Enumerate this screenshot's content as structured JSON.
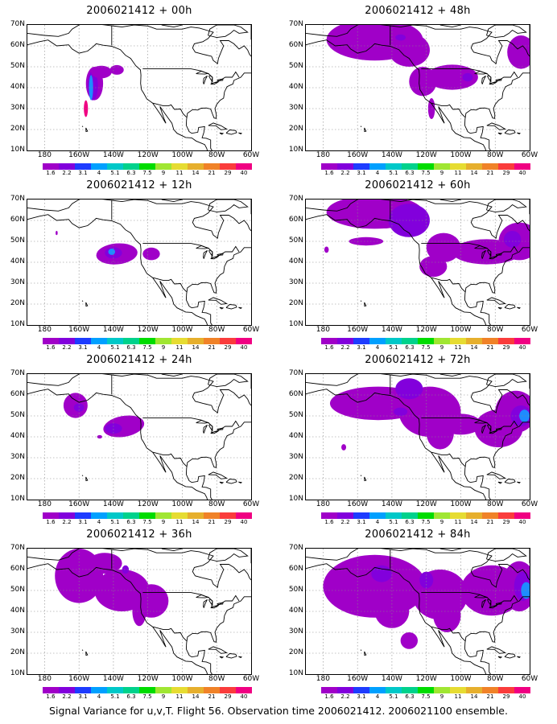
{
  "panels": [
    {
      "title": "2006021412 + 00h",
      "hour": 0
    },
    {
      "title": "2006021412 + 48h",
      "hour": 48
    },
    {
      "title": "2006021412 + 12h",
      "hour": 12
    },
    {
      "title": "2006021412 + 60h",
      "hour": 60
    },
    {
      "title": "2006021412 + 24h",
      "hour": 24
    },
    {
      "title": "2006021412 + 72h",
      "hour": 72
    },
    {
      "title": "2006021412 + 36h",
      "hour": 36
    },
    {
      "title": "2006021412 + 84h",
      "hour": 84
    }
  ],
  "axes": {
    "lat_labels": [
      "70N",
      "60N",
      "50N",
      "40N",
      "30N",
      "20N",
      "10N"
    ],
    "lon_labels": [
      "180",
      "160W",
      "140W",
      "120W",
      "100W",
      "80W",
      "60W"
    ]
  },
  "colorbar": {
    "labels": [
      "1.6",
      "2.2",
      "3.1",
      "4",
      "5.1",
      "6.3",
      "7.5",
      "9",
      "11",
      "14",
      "21",
      "29",
      "40"
    ],
    "colors": [
      "#a000c8",
      "#8200dc",
      "#1e3cff",
      "#00a0ff",
      "#00c8c8",
      "#00d28c",
      "#00dc00",
      "#a0e632",
      "#e6dc32",
      "#e6af2d",
      "#f08228",
      "#fa3c3c",
      "#f00082"
    ]
  },
  "caption": "Signal Variance for u,v,T. Flight 56. Observation time 2006021412. 2006021100 ensemble."
}
